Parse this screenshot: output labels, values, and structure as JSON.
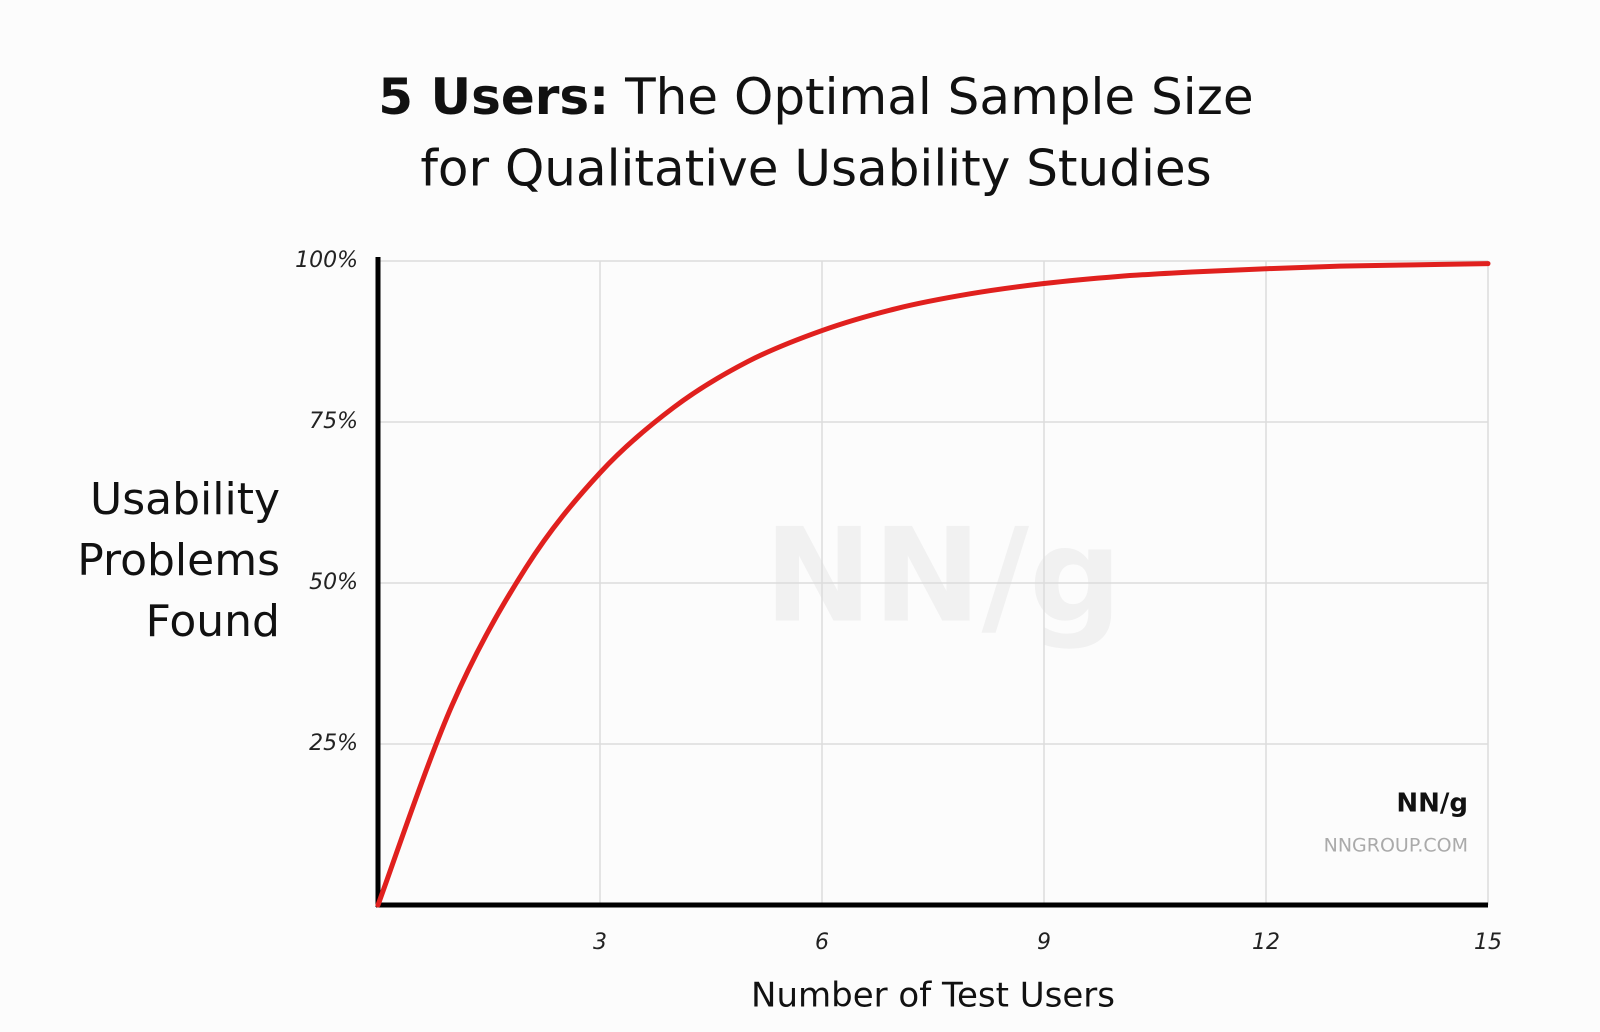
{
  "chart_data": {
    "type": "line",
    "title": [
      "5 Users:",
      "The Optimal Sample Size",
      "for Qualitative Usability Studies"
    ],
    "ylabel": [
      "Usability",
      "Problems",
      "Found"
    ],
    "xlabel": "Number of Test Users",
    "x": [
      0,
      1,
      2,
      3,
      4,
      5,
      6,
      7,
      8,
      9,
      10,
      11,
      12,
      13,
      14,
      15
    ],
    "series": [
      {
        "color": "#e0201e",
        "values": [
          0,
          31,
          52.4,
          67.1,
          77.3,
          84.4,
          89.2,
          92.6,
          94.9,
          96.5,
          97.6,
          98.3,
          98.8,
          99.2,
          99.4,
          99.6
        ]
      }
    ],
    "xlim": [
      0,
      15
    ],
    "xticks": [
      3,
      6,
      9,
      12,
      15
    ],
    "ylim": [
      0,
      100
    ],
    "yticks": [
      {
        "value": 25,
        "label": "25%"
      },
      {
        "value": 50,
        "label": "50%"
      },
      {
        "value": 75,
        "label": "75%"
      },
      {
        "value": 100,
        "label": "100%"
      }
    ],
    "grid": true,
    "watermark": "NN/g",
    "logo": [
      "NN/g",
      "NNGROUP.COM"
    ]
  }
}
